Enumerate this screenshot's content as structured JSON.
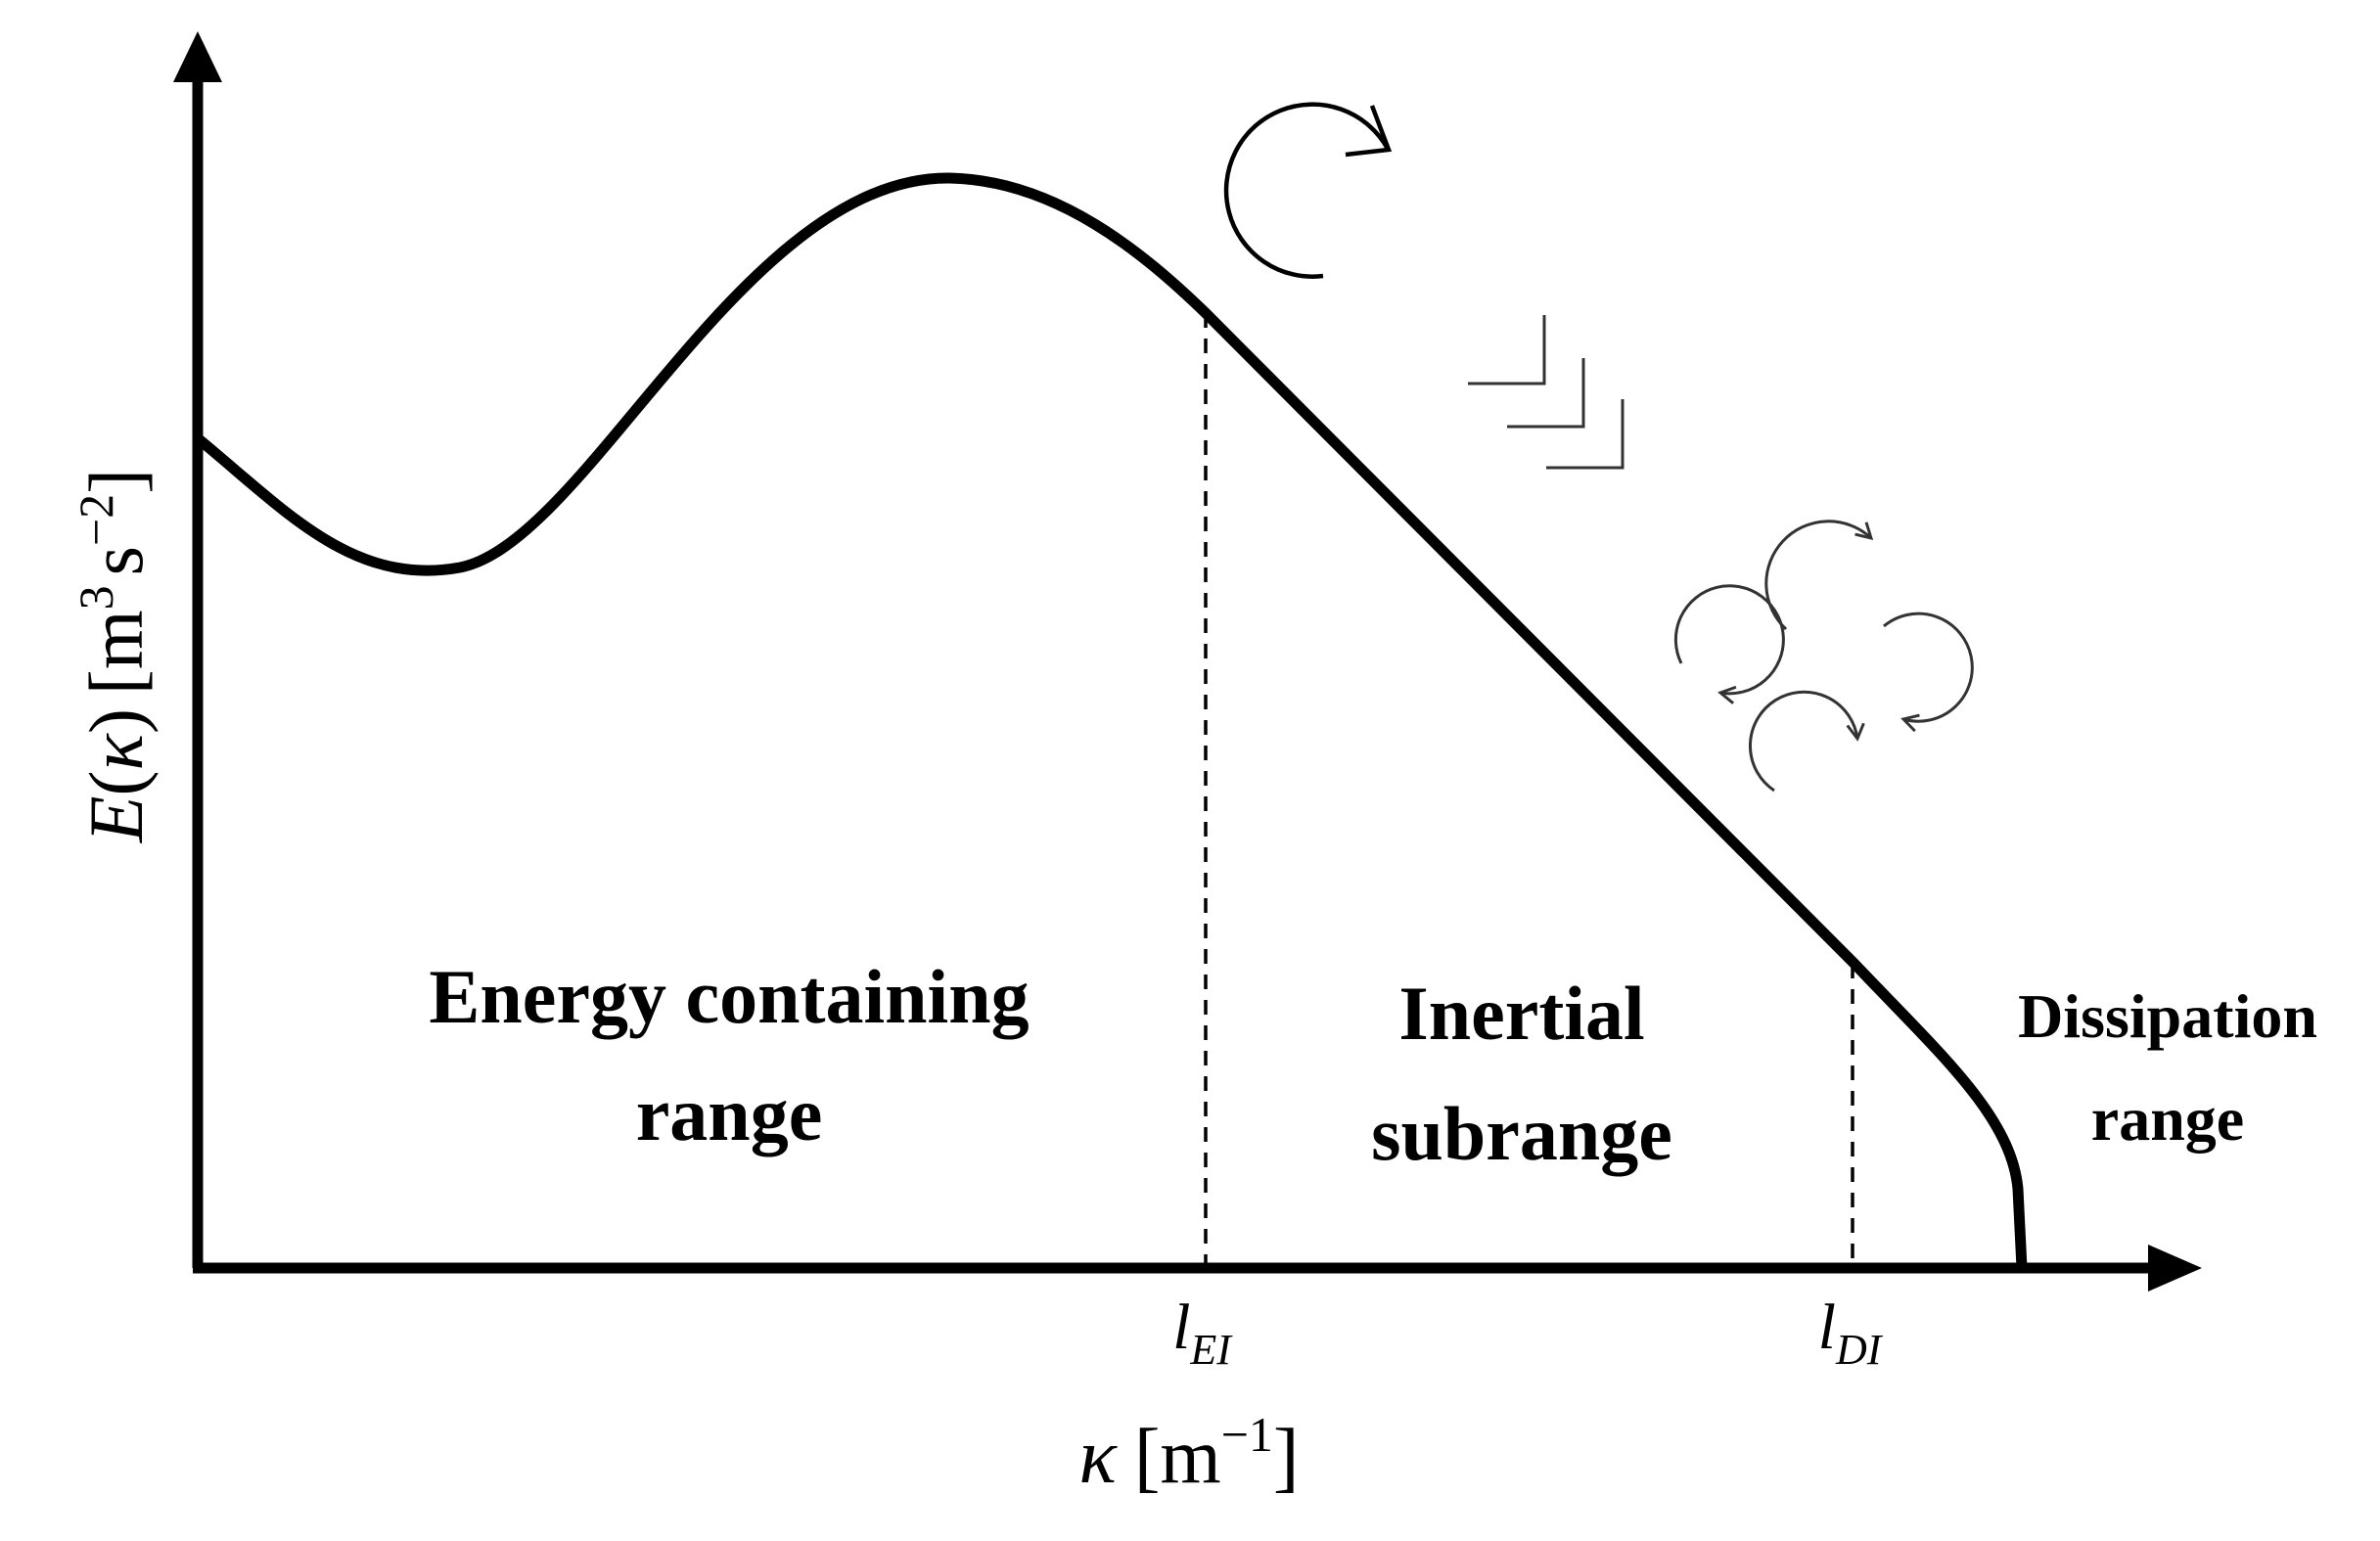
{
  "axes": {
    "y_label": {
      "symbol": "E",
      "open_paren": "(",
      "variable": "κ",
      "close_paren": ")",
      "unit_open": "[m",
      "unit_exp1": "3",
      "unit_mid": "s",
      "unit_exp2": "−2",
      "unit_close": "]"
    },
    "x_label": {
      "variable": "κ",
      "unit_open": "[m",
      "unit_exp": "−1",
      "unit_close": "]"
    }
  },
  "markers": {
    "l_ei": {
      "base": "l",
      "sub": "EI"
    },
    "l_di": {
      "base": "l",
      "sub": "DI"
    }
  },
  "regions": {
    "energy": {
      "line1": "Energy containing",
      "line2": "range"
    },
    "inertial": {
      "line1": "Inertial",
      "line2": "subrange"
    },
    "dissipation": {
      "line1": "Dissipation",
      "line2": "range"
    }
  },
  "icons": [
    "large-eddy-icon",
    "chevron-cascade-icon",
    "small-eddies-icon"
  ],
  "colors": {
    "ink": "#000000",
    "eddy_stroke": "#333333",
    "background": "#ffffff"
  }
}
